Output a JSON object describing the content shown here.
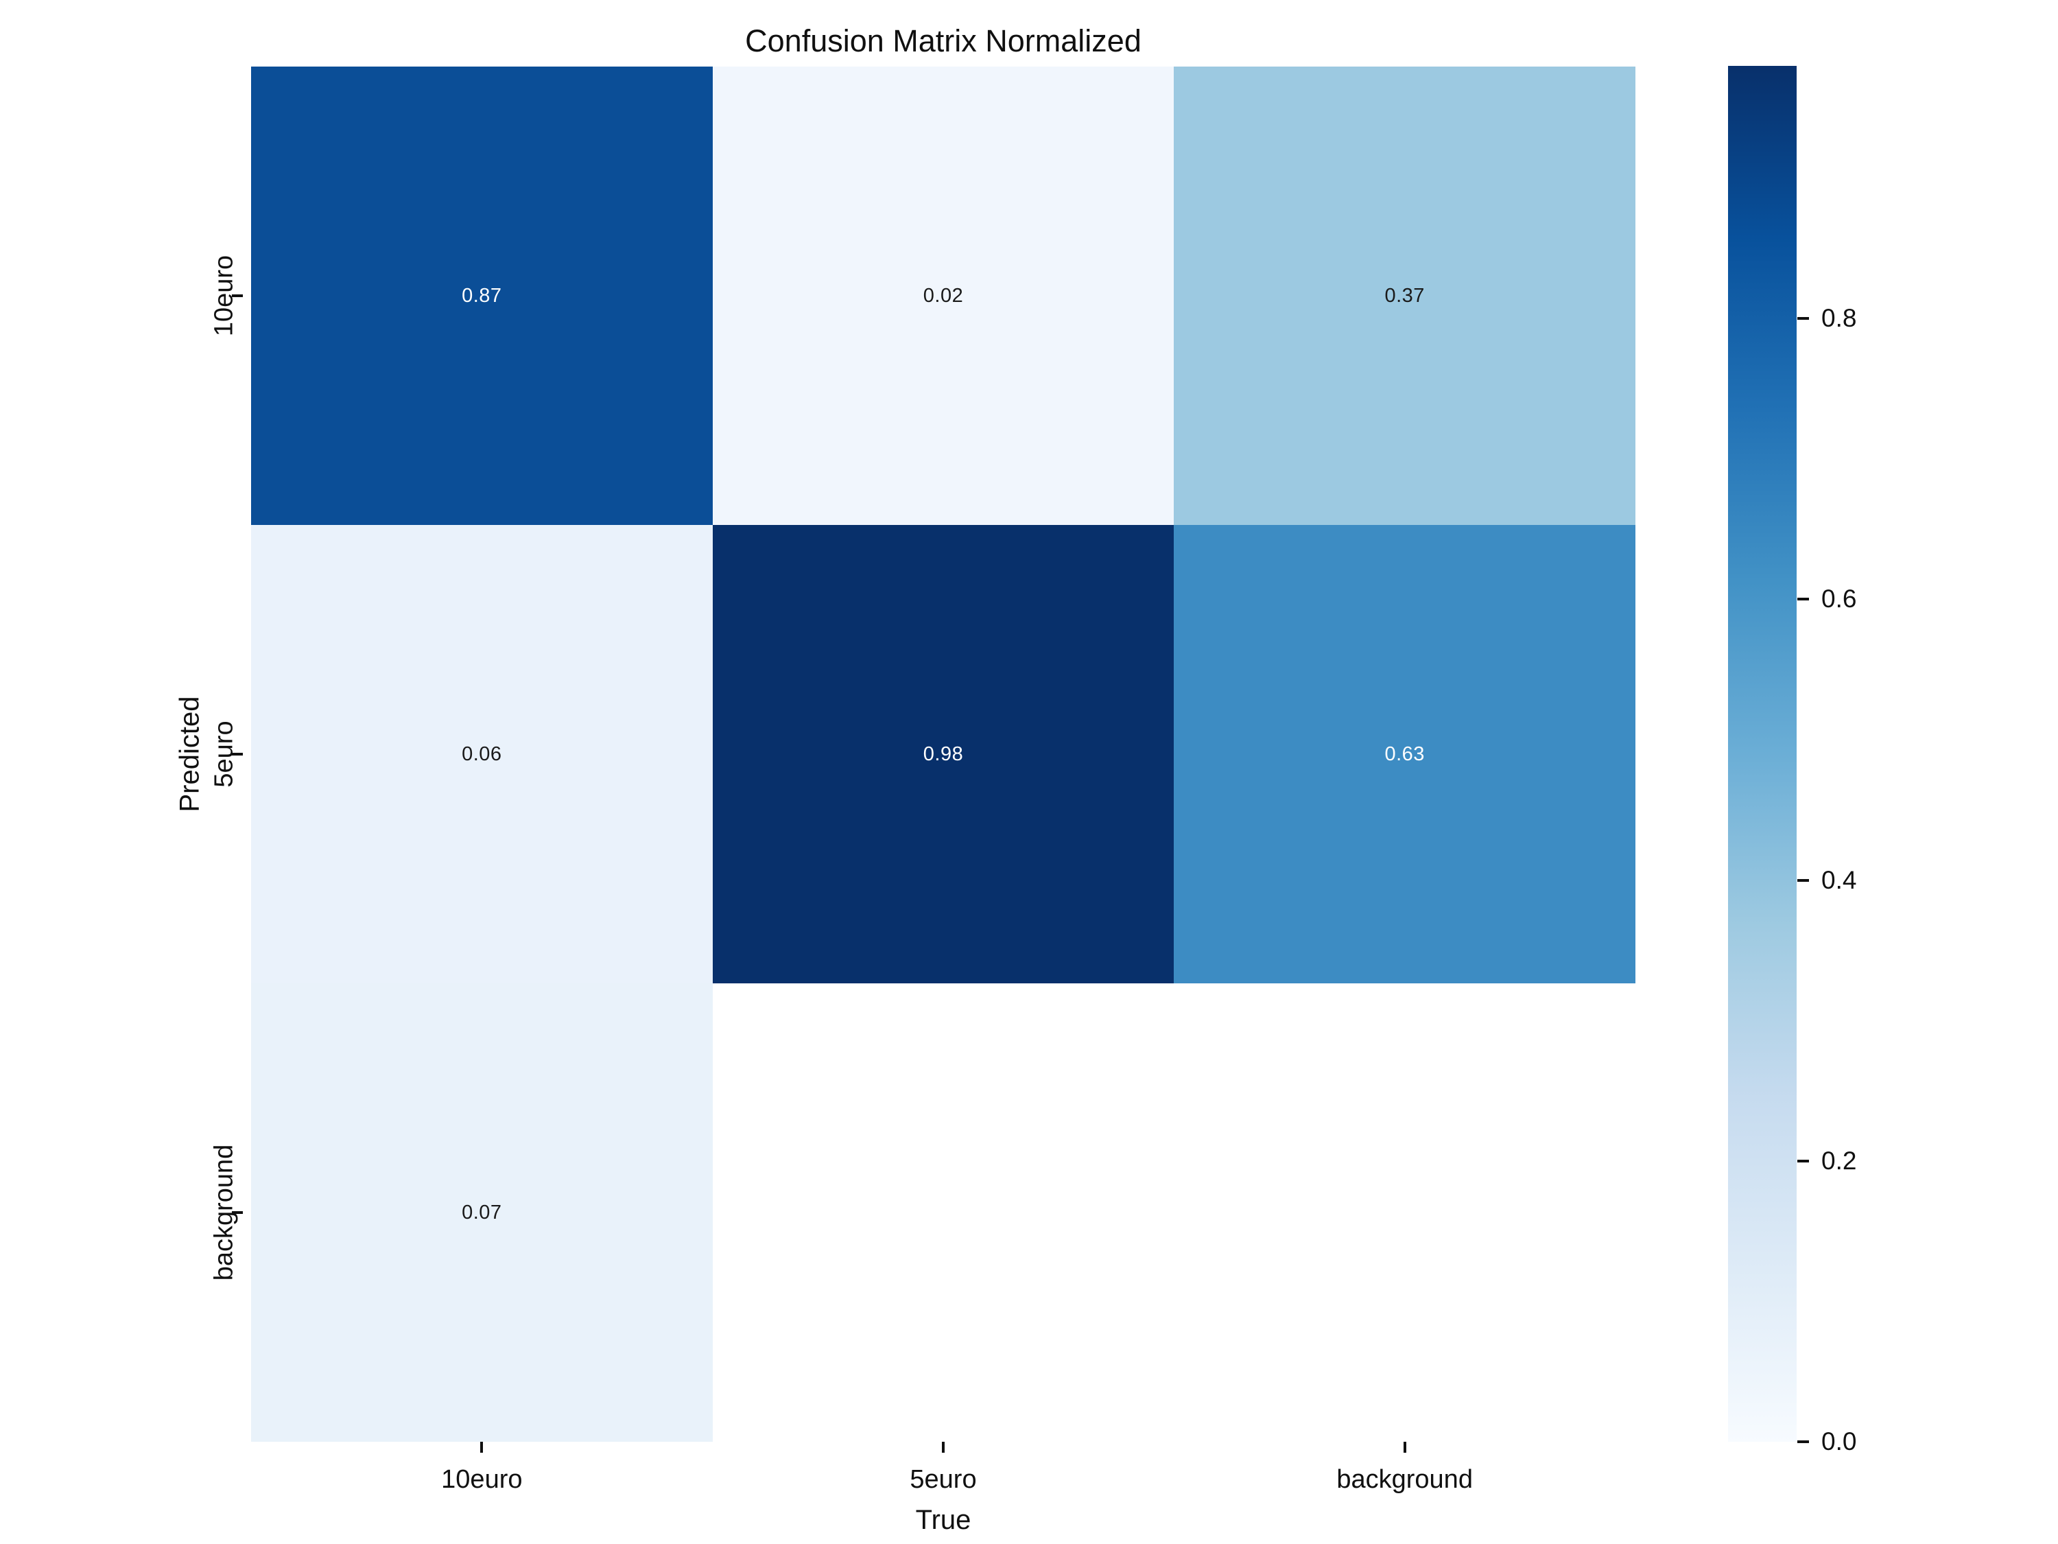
{
  "chart_data": {
    "type": "heatmap",
    "title": "Confusion Matrix Normalized",
    "xlabel": "True",
    "ylabel": "Predicted",
    "x_categories": [
      "10euro",
      "5euro",
      "background"
    ],
    "y_categories": [
      "10euro",
      "5euro",
      "background"
    ],
    "values": [
      [
        0.87,
        0.02,
        0.37
      ],
      [
        0.06,
        0.98,
        0.63
      ],
      [
        0.07,
        null,
        null
      ]
    ],
    "cell_labels": [
      [
        "0.87",
        "0.02",
        "0.37"
      ],
      [
        "0.06",
        "0.98",
        "0.63"
      ],
      [
        "0.07",
        "",
        ""
      ]
    ],
    "cell_colors": [
      [
        "#0b4e97",
        "#f1f6fd",
        "#9cc9e1"
      ],
      [
        "#eaf2fb",
        "#08306b",
        "#3d8cc3"
      ],
      [
        "#e9f2fa",
        "#ffffff",
        "#ffffff"
      ]
    ],
    "cell_text_colors": [
      [
        "#ffffff",
        "#1a1a1a",
        "#1a1a1a"
      ],
      [
        "#1a1a1a",
        "#ffffff",
        "#ffffff"
      ],
      [
        "#1a1a1a",
        "",
        ""
      ]
    ],
    "colormap": "Blues",
    "vmin": 0.0,
    "vmax": 0.98,
    "grid": false,
    "legend_position": "right-colorbar",
    "colorbar": {
      "tick_labels": [
        "0.8",
        "0.6",
        "0.4",
        "0.2",
        "0.0"
      ],
      "tick_values": [
        0.8,
        0.6,
        0.4,
        0.2,
        0.0
      ],
      "gradient_top_to_bottom": [
        "#08306b",
        "#08519c",
        "#2171b5",
        "#4292c6",
        "#6baed6",
        "#9ecae1",
        "#c6dbef",
        "#deebf7",
        "#f7fbff"
      ]
    }
  }
}
